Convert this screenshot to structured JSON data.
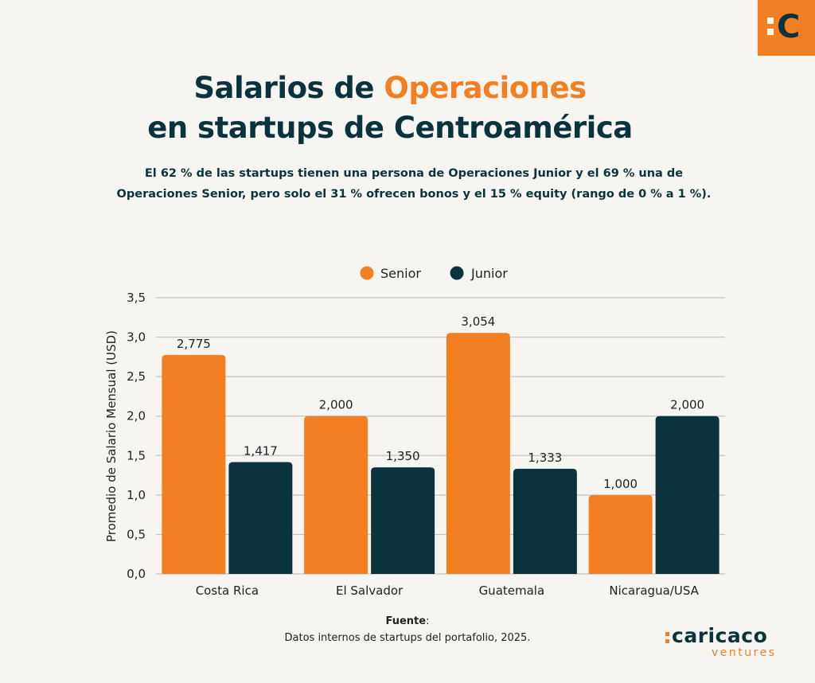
{
  "logo": {
    "glyph": "C",
    "icon": "caricaco-logo-icon"
  },
  "title": {
    "part1": "Salarios de ",
    "accent": "Operaciones",
    "line2": "en startups de Centroamérica"
  },
  "subtitle": {
    "line1": "El 62 % de las startups tienen una persona de Operaciones Junior y el 69 % una de",
    "line2": "Operaciones Senior, pero solo el 31 % ofrecen bonos y el 15 % equity (rango de 0 % a 1 %)."
  },
  "colors": {
    "senior": "#f27f22",
    "junior": "#0b333d",
    "grid": "#c4c4c4",
    "background": "#f7f5f2"
  },
  "chart_data": {
    "type": "bar",
    "title": "Salarios de Operaciones en startups de Centroamérica",
    "xlabel": "",
    "ylabel": "Promedio de Salario Mensual (USD)",
    "ylim": [
      0,
      3.5
    ],
    "yticks": [
      0,
      0.5,
      1.0,
      1.5,
      2.0,
      2.5,
      3.0,
      3.5
    ],
    "ytick_labels": [
      "0,0",
      "0,5",
      "1,0",
      "1,5",
      "2,0",
      "2,5",
      "3,0",
      "3,5"
    ],
    "grid": true,
    "legend_position": "top-center",
    "categories": [
      "Costa Rica",
      "El Salvador",
      "Guatemala",
      "Nicaragua/USA"
    ],
    "series": [
      {
        "name": "Senior",
        "color": "#f27f22",
        "values": [
          2.775,
          2.0,
          3.054,
          1.0
        ],
        "labels": [
          "2,775",
          "2,000",
          "3,054",
          "1,000"
        ]
      },
      {
        "name": "Junior",
        "color": "#0b333d",
        "values": [
          1.417,
          1.35,
          1.333,
          2.0
        ],
        "labels": [
          "1,417",
          "1,350",
          "1,333",
          "2,000"
        ]
      }
    ]
  },
  "source": {
    "label": "Fuente",
    "text": "Datos internos de startups del portafolio, 2025."
  },
  "brand": {
    "name": "caricaco",
    "sub": "ventures"
  }
}
